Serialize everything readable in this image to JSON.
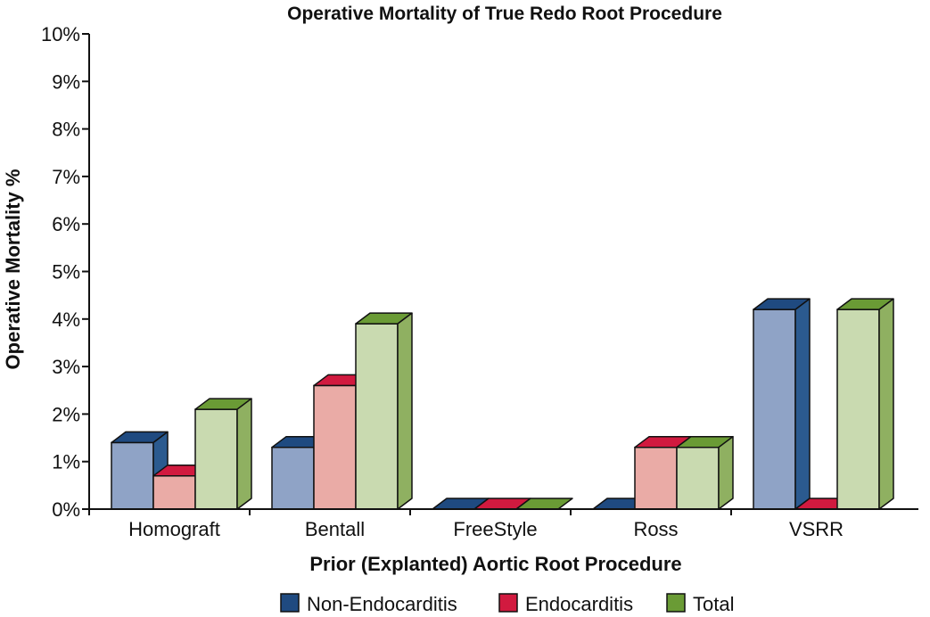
{
  "chart_data": {
    "type": "bar",
    "title": "Operative Mortality of True Redo Root Procedure",
    "xlabel": "Prior (Explanted) Aortic Root Procedure",
    "ylabel": "Operative Mortality %",
    "categories": [
      "Homograft",
      "Bentall",
      "FreeStyle",
      "Ross",
      "VSRR"
    ],
    "series": [
      {
        "name": "Non-Endocarditis",
        "values": [
          1.4,
          1.3,
          0,
          0,
          4.2
        ],
        "front_color": "#8fa3c6",
        "top_color": "#1f4a80",
        "side_color": "#2b5a8f"
      },
      {
        "name": "Endocarditis",
        "values": [
          0.7,
          2.6,
          0,
          1.3,
          0
        ],
        "front_color": "#eaaba6",
        "top_color": "#d11a3f",
        "side_color": "#d11a3f"
      },
      {
        "name": "Total",
        "values": [
          2.1,
          3.9,
          0,
          1.3,
          4.2
        ],
        "front_color": "#c9dab0",
        "top_color": "#6a9b35",
        "side_color": "#8fb061"
      }
    ],
    "ylim": [
      0,
      10
    ],
    "yticks": [
      "0%",
      "1%",
      "2%",
      "3%",
      "4%",
      "5%",
      "6%",
      "7%",
      "8%",
      "9%",
      "10%"
    ],
    "legend_position": "bottom",
    "grid": false
  }
}
